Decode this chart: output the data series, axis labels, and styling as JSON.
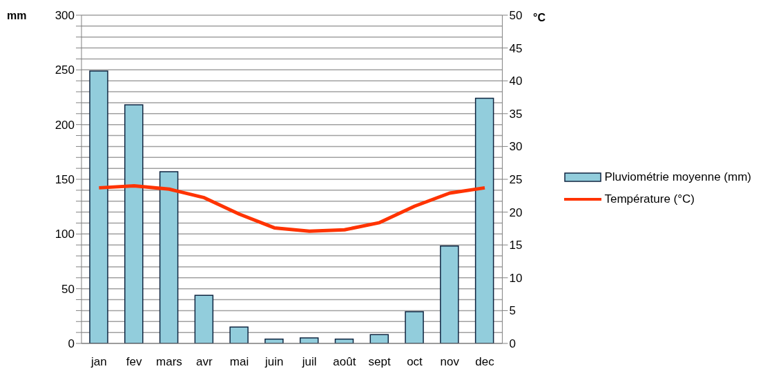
{
  "chart_data": {
    "type": "bar",
    "ylabel": "mm",
    "y2label": "°C",
    "categories": [
      "jan",
      "fev",
      "mars",
      "avr",
      "mai",
      "juin",
      "juil",
      "août",
      "sept",
      "oct",
      "nov",
      "dec"
    ],
    "series": [
      {
        "name": "Pluviométrie moyenne (mm)",
        "color": "#92cddc",
        "values": [
          249,
          218,
          157,
          44,
          15,
          4,
          5,
          4,
          8,
          29,
          89,
          224
        ]
      },
      {
        "name": "Température (°C)",
        "type": "line",
        "axis": "y2",
        "color": "#ff3300",
        "marker": "none",
        "values": [
          23.7,
          24.0,
          23.5,
          22.2,
          19.7,
          17.6,
          17.1,
          17.3,
          18.4,
          20.9,
          22.9,
          23.7
        ]
      }
    ],
    "ylim": [
      0,
      300
    ],
    "yticks": [
      0,
      {
        "value": 10,
        "label": null
      },
      {
        "value": 20,
        "label": null
      },
      {
        "value": 30,
        "label": null
      },
      {
        "value": 40,
        "label": null
      },
      50,
      {
        "value": 60,
        "label": null
      },
      {
        "value": 70,
        "label": null
      },
      {
        "value": 80,
        "label": null
      },
      {
        "value": 90,
        "label": null
      },
      100,
      {
        "value": 110,
        "label": null
      },
      {
        "value": 120,
        "label": null
      },
      {
        "value": 130,
        "label": null
      },
      {
        "value": 140,
        "label": null
      },
      150,
      {
        "value": 160,
        "label": null
      },
      {
        "value": 170,
        "label": null
      },
      {
        "value": 180,
        "label": null
      },
      {
        "value": 190,
        "label": null
      },
      200,
      {
        "value": 210,
        "label": null
      },
      {
        "value": 220,
        "label": null
      },
      {
        "value": 230,
        "label": null
      },
      {
        "value": 240,
        "label": null
      },
      250,
      {
        "value": 260,
        "label": null
      },
      {
        "value": 270,
        "label": null
      },
      {
        "value": 280,
        "label": null
      },
      {
        "value": 290,
        "label": null
      },
      300
    ],
    "y2lim": [
      0,
      50
    ],
    "y2ticks": [
      0,
      5,
      10,
      15,
      20,
      25,
      30,
      35,
      40,
      45,
      50
    ],
    "grid": "y",
    "legend": "right"
  }
}
